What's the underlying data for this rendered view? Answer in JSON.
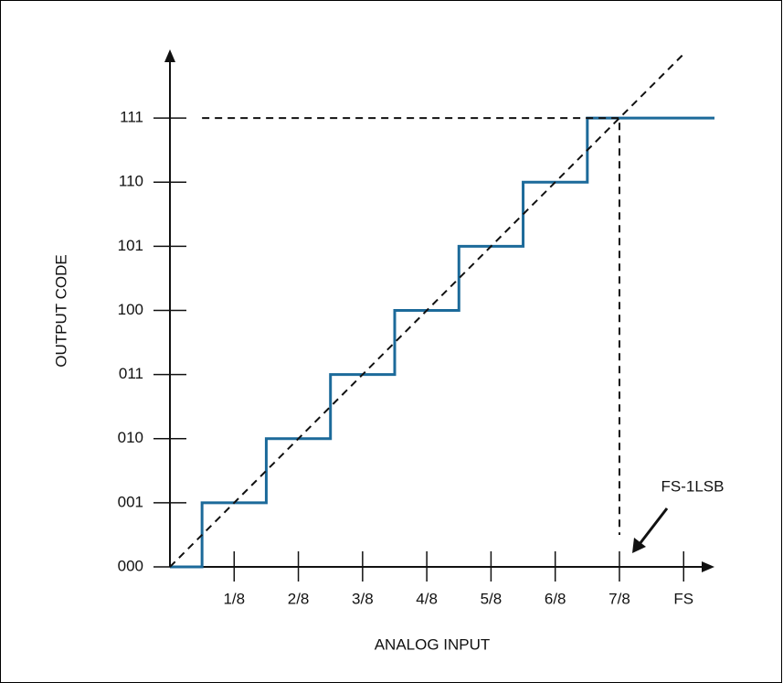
{
  "chart_data": {
    "type": "line",
    "x_label": "ANALOG INPUT",
    "y_label": "OUTPUT CODE",
    "annotation": "FS-1LSB",
    "xlim": [
      0,
      1.06
    ],
    "ylim": [
      0,
      8.1
    ],
    "xticks": [
      {
        "value": 0.125,
        "label": "1/8"
      },
      {
        "value": 0.25,
        "label": "2/8"
      },
      {
        "value": 0.375,
        "label": "3/8"
      },
      {
        "value": 0.5,
        "label": "4/8"
      },
      {
        "value": 0.625,
        "label": "5/8"
      },
      {
        "value": 0.75,
        "label": "6/8"
      },
      {
        "value": 0.875,
        "label": "7/8"
      },
      {
        "value": 1,
        "label": "FS"
      }
    ],
    "yticks": [
      {
        "value": 0,
        "label": "000"
      },
      {
        "value": 1,
        "label": "001"
      },
      {
        "value": 2,
        "label": "010"
      },
      {
        "value": 3,
        "label": "011"
      },
      {
        "value": 4,
        "label": "100"
      },
      {
        "value": 5,
        "label": "101"
      },
      {
        "value": 6,
        "label": "110"
      },
      {
        "value": 7,
        "label": "111"
      }
    ],
    "series": [
      {
        "color": "#1c6a9a",
        "dash": false,
        "x": [
          0,
          0.0625,
          0.0625,
          0.1875,
          0.1875,
          0.3125,
          0.3125,
          0.4375,
          0.4375,
          0.5625,
          0.5625,
          0.6875,
          0.6875,
          0.8125,
          0.8125,
          1.06
        ],
        "values": [
          0,
          0,
          1,
          1,
          2,
          2,
          3,
          3,
          4,
          4,
          5,
          5,
          6,
          6,
          7,
          7
        ]
      },
      {
        "color": "#111111",
        "dash": true,
        "x": [
          0,
          1
        ],
        "values": [
          0,
          8
        ]
      },
      {
        "color": "#111111",
        "dash": true,
        "x": [
          0.0625,
          0.875,
          0.875
        ],
        "values": [
          7,
          7,
          0.5
        ]
      }
    ]
  }
}
